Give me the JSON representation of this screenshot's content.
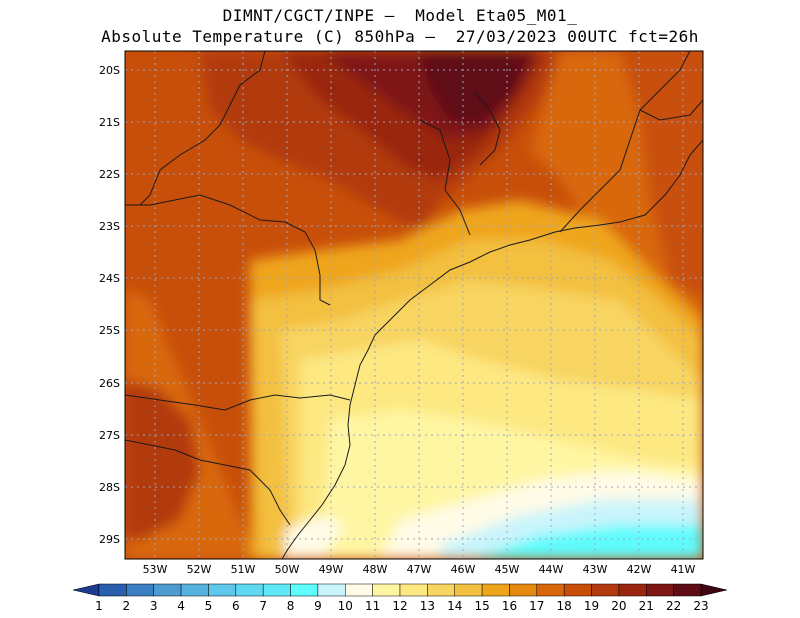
{
  "title": {
    "line1": "DIMNT/CGCT/INPE –  Model Eta05_M01_",
    "line2": "Absolute Temperature (C) 850hPa –  27/03/2023 00UTC fct=26h"
  },
  "map": {
    "lat_labels": [
      "20S",
      "21S",
      "22S",
      "23S",
      "24S",
      "25S",
      "26S",
      "27S",
      "28S",
      "29S"
    ],
    "lon_labels": [
      "53W",
      "52W",
      "51W",
      "50W",
      "49W",
      "48W",
      "47W",
      "46W",
      "45W",
      "44W",
      "43W",
      "42W",
      "41W"
    ]
  },
  "colorbar": {
    "labels": [
      "1",
      "2",
      "3",
      "4",
      "5",
      "6",
      "7",
      "8",
      "9",
      "10",
      "11",
      "12",
      "13",
      "14",
      "15",
      "16",
      "17",
      "18",
      "19",
      "20",
      "21",
      "22",
      "23"
    ],
    "colors": [
      "#1f3a93",
      "#2a5fad",
      "#3a7fc1",
      "#4c9bd1",
      "#55b3de",
      "#5ec7ea",
      "#5fd8f2",
      "#5fe8f8",
      "#5efcfc",
      "#c9f4fb",
      "#fffbe6",
      "#fff6a3",
      "#fde882",
      "#f8d460",
      "#f3c040",
      "#efa51a",
      "#e58a0e",
      "#d9670a",
      "#c84f0a",
      "#b23a0e",
      "#9a2610",
      "#7f1616",
      "#5e0c16",
      "#3e0610"
    ]
  }
}
